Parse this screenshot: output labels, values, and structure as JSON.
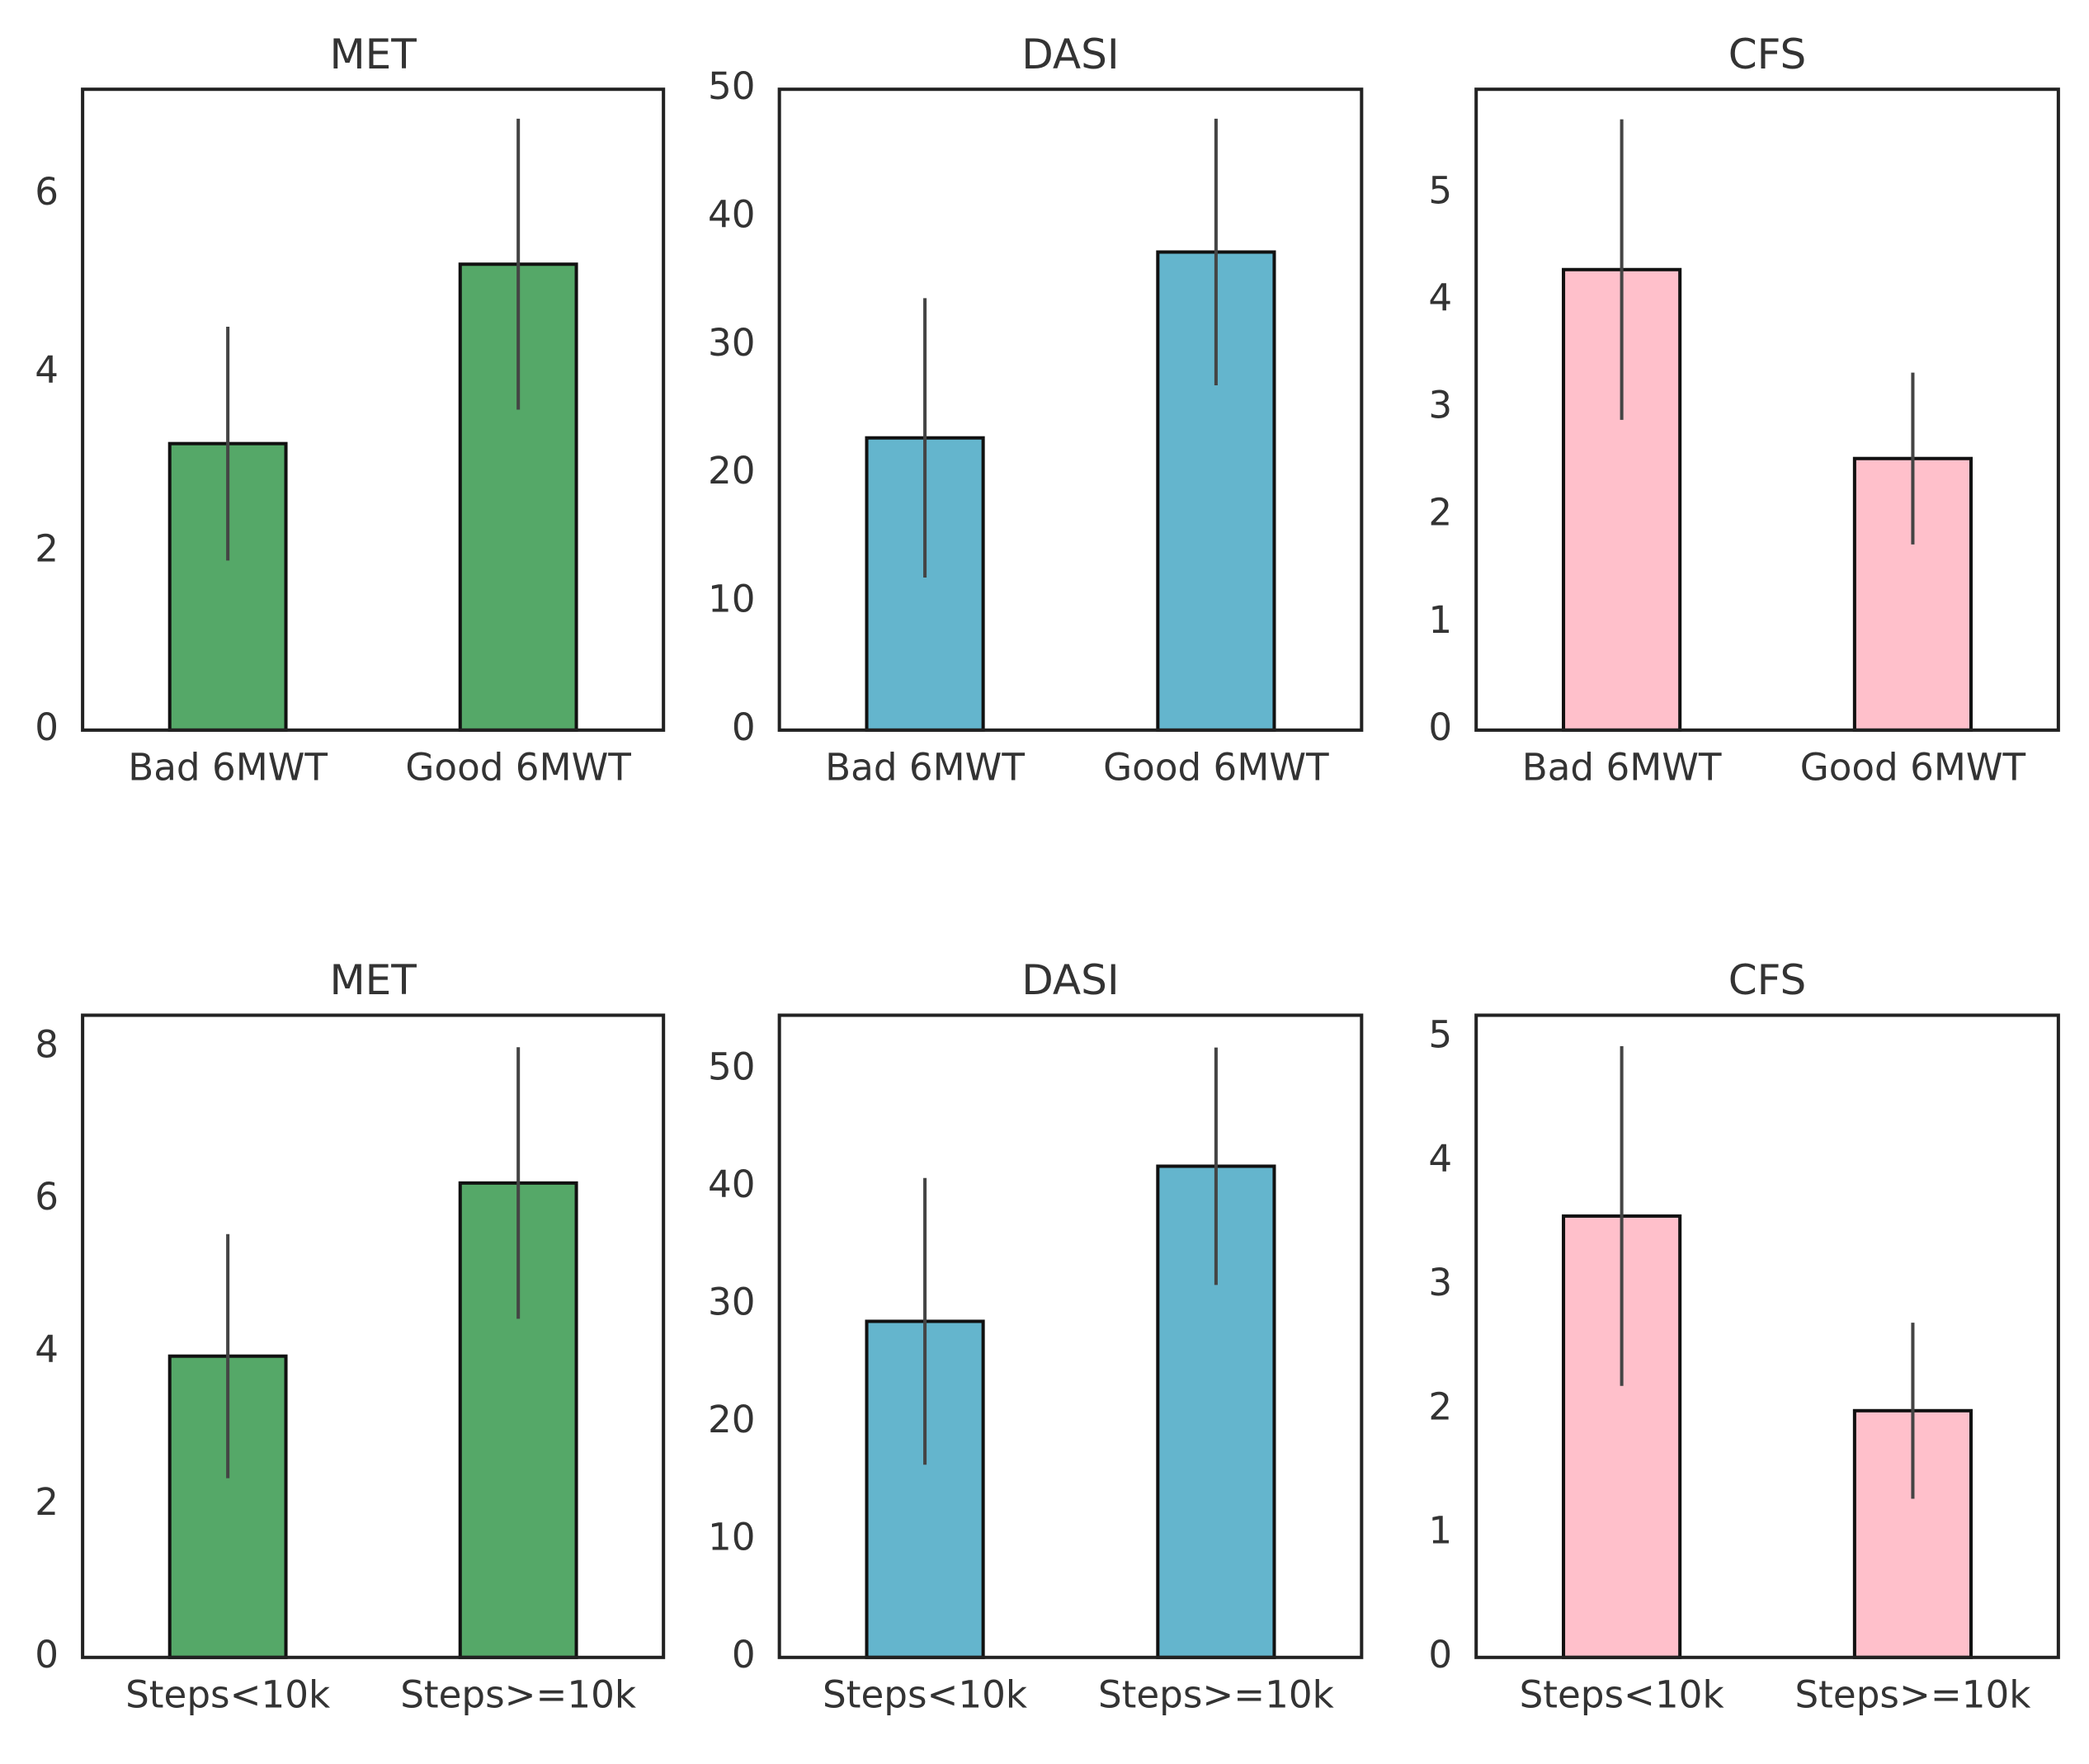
{
  "chart_data": [
    {
      "type": "bar",
      "title": "MET",
      "categories": [
        "Bad 6MWT",
        "Good 6MWT"
      ],
      "values": [
        3.21,
        5.22
      ],
      "errors": [
        1.31,
        1.63
      ],
      "color": "#55a868",
      "ylim": [
        0,
        7.18
      ],
      "yticks": [
        0,
        2,
        4,
        6
      ]
    },
    {
      "type": "bar",
      "title": "DASI",
      "categories": [
        "Bad 6MWT",
        "Good 6MWT"
      ],
      "values": [
        22.8,
        37.3
      ],
      "errors": [
        10.9,
        10.4
      ],
      "color": "#64b5cd",
      "ylim": [
        0,
        50
      ],
      "yticks": [
        0,
        10,
        20,
        30,
        40,
        50
      ]
    },
    {
      "type": "bar",
      "title": "CFS",
      "categories": [
        "Bad 6MWT",
        "Good 6MWT"
      ],
      "values": [
        4.29,
        2.53
      ],
      "errors": [
        1.4,
        0.8
      ],
      "color": "#ffc0cb",
      "ylim": [
        0,
        5.97
      ],
      "yticks": [
        0,
        1,
        2,
        3,
        4,
        5
      ]
    },
    {
      "type": "bar",
      "title": "MET",
      "categories": [
        "Steps<10k",
        "Steps>=10k"
      ],
      "values": [
        3.95,
        6.22
      ],
      "errors": [
        1.6,
        1.78
      ],
      "color": "#55a868",
      "ylim": [
        0,
        8.42
      ],
      "yticks": [
        0,
        2,
        4,
        6,
        8
      ]
    },
    {
      "type": "bar",
      "title": "DASI",
      "categories": [
        "Steps<10k",
        "Steps>=10k"
      ],
      "values": [
        28.6,
        41.8
      ],
      "errors": [
        12.2,
        10.1
      ],
      "color": "#64b5cd",
      "ylim": [
        0,
        54.65
      ],
      "yticks": [
        0,
        10,
        20,
        30,
        40,
        50
      ]
    },
    {
      "type": "bar",
      "title": "CFS",
      "categories": [
        "Steps<10k",
        "Steps>=10k"
      ],
      "values": [
        3.56,
        1.99
      ],
      "errors": [
        1.37,
        0.71
      ],
      "color": "#ffc0cb",
      "ylim": [
        0,
        5.18
      ],
      "yticks": [
        0,
        1,
        2,
        3,
        4,
        5
      ]
    }
  ]
}
